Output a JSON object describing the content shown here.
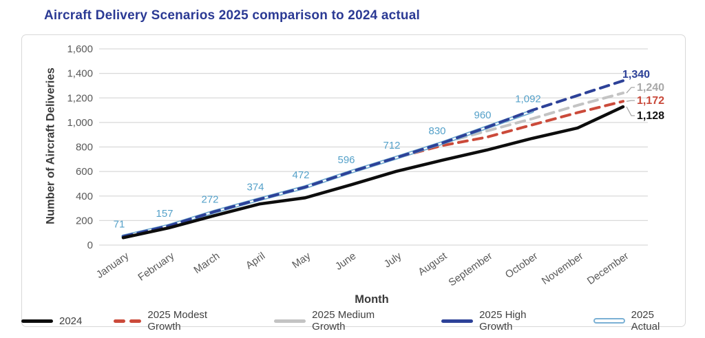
{
  "title": "Aircraft Delivery Scenarios 2025 comparison to 2024 actual",
  "chart_data": {
    "type": "line",
    "title": "Aircraft Delivery Scenarios 2025 comparison to 2024 actual",
    "xlabel": "Month",
    "ylabel": "Number of Aircraft Deliveries",
    "ylim": [
      0,
      1600
    ],
    "ytick_step": 200,
    "ytick_labels": [
      "0",
      "200",
      "400",
      "600",
      "800",
      "1,000",
      "1,200",
      "1,400",
      "1,600"
    ],
    "grid": true,
    "grid_color": "#d9d9d9",
    "legend_position": "bottom",
    "categories": [
      "January",
      "February",
      "March",
      "April",
      "May",
      "June",
      "July",
      "August",
      "September",
      "October",
      "November",
      "December"
    ],
    "series": [
      {
        "name": "2024",
        "color": "#0d0d0d",
        "style": "solid",
        "width": 4.5,
        "z": 5,
        "values": [
          60,
          140,
          240,
          335,
          385,
          490,
          600,
          690,
          775,
          870,
          955,
          1128
        ]
      },
      {
        "name": "2025 Modest Growth",
        "color": "#cb4a3a",
        "style": "dashed",
        "width": 4,
        "z": 1,
        "values": [
          71,
          157,
          272,
          374,
          472,
          596,
          712,
          810,
          880,
          980,
          1080,
          1172
        ]
      },
      {
        "name": "2025 Medium Growth",
        "color": "#c3c3c3",
        "style": "dashed",
        "width": 4,
        "z": 2,
        "values": [
          71,
          157,
          272,
          374,
          472,
          596,
          712,
          830,
          930,
          1030,
          1140,
          1240
        ]
      },
      {
        "name": "2025 High Growth",
        "color": "#2d4198",
        "style": "dashed",
        "width": 4,
        "z": 4,
        "values": [
          71,
          157,
          272,
          374,
          472,
          596,
          712,
          830,
          960,
          1100,
          1220,
          1340
        ]
      },
      {
        "name": "2025 Actual",
        "color": "#6faacf",
        "style": "double",
        "width": 5.5,
        "z": 3,
        "values": [
          71,
          157,
          272,
          374,
          472,
          596,
          712,
          830,
          960,
          1092
        ]
      }
    ],
    "data_labels": {
      "series": "2025 Actual",
      "values": [
        "71",
        "157",
        "272",
        "374",
        "472",
        "596",
        "712",
        "830",
        "960",
        "1,092"
      ]
    },
    "end_labels": [
      {
        "text": "1,340",
        "value": 1340,
        "color": "#2d4198",
        "leader": false
      },
      {
        "text": "1,240",
        "value": 1240,
        "color": "#a8a8a8",
        "leader": true
      },
      {
        "text": "1,172",
        "value": 1172,
        "color": "#c9493a",
        "leader": true
      },
      {
        "text": "1,128",
        "value": 1128,
        "color": "#111111",
        "leader": true
      }
    ]
  },
  "legend": {
    "items": [
      {
        "label": "2024",
        "swatch": "solid",
        "color": "#0d0d0d"
      },
      {
        "label": "2025 Modest Growth",
        "swatch": "dashes",
        "color": "#cb4a3a"
      },
      {
        "label": "2025 Medium Growth",
        "swatch": "solid",
        "color": "#c3c3c3"
      },
      {
        "label": "2025 High Growth",
        "swatch": "solid",
        "color": "#2d4198"
      },
      {
        "label": "2025 Actual",
        "swatch": "capsule",
        "color": "#7ab0d4"
      }
    ]
  }
}
